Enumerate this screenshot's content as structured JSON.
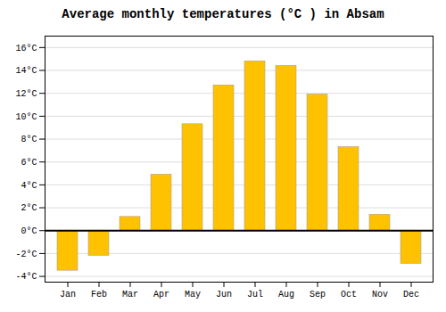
{
  "chart_data": {
    "type": "bar",
    "title": "Average monthly temperatures (°C ) in Absam",
    "categories": [
      "Jan",
      "Feb",
      "Mar",
      "Apr",
      "May",
      "Jun",
      "Jul",
      "Aug",
      "Sep",
      "Oct",
      "Nov",
      "Dec"
    ],
    "values": [
      -3.5,
      -2.2,
      1.2,
      4.9,
      9.3,
      12.7,
      14.8,
      14.4,
      11.9,
      7.3,
      1.4,
      -2.9
    ],
    "color": "#FFC200",
    "ylim": [
      -4.5,
      17
    ],
    "yticks": [
      {
        "value": -4,
        "label": "-4°C"
      },
      {
        "value": -2,
        "label": "-2°C"
      },
      {
        "value": 0,
        "label": "0°C"
      },
      {
        "value": 2,
        "label": "2°C"
      },
      {
        "value": 4,
        "label": "4°C"
      },
      {
        "value": 6,
        "label": "6°C"
      },
      {
        "value": 8,
        "label": "8°C"
      },
      {
        "value": 10,
        "label": "10°C"
      },
      {
        "value": 12,
        "label": "12°C"
      },
      {
        "value": 14,
        "label": "14°C"
      },
      {
        "value": 16,
        "label": "16°C"
      }
    ],
    "grid": true
  }
}
